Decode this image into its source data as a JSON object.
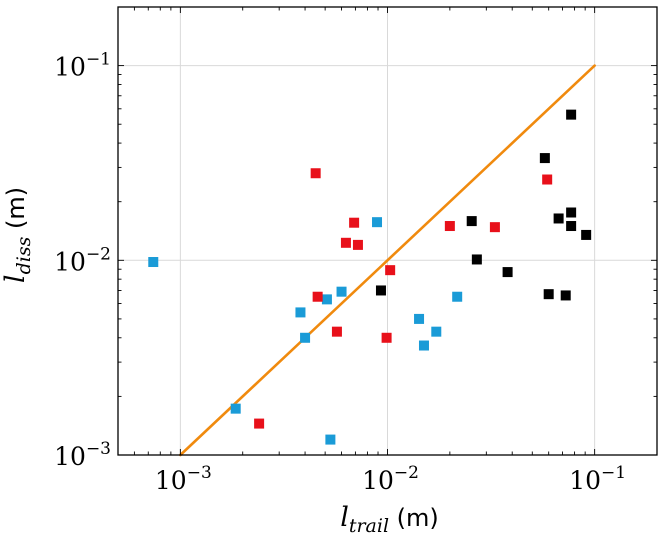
{
  "chart_data": {
    "type": "scatter",
    "title": "",
    "xlabel": {
      "base": "l",
      "sub": "trail",
      "unit": " (m)"
    },
    "ylabel": {
      "base": "l",
      "sub": "diss",
      "unit": " (m)"
    },
    "xscale": "log",
    "yscale": "log",
    "xlim": [
      0.0005,
      0.2
    ],
    "ylim": [
      0.001,
      0.2
    ],
    "grid": true,
    "xticks": [
      {
        "value": 0.001,
        "base": "10",
        "exp": "−3"
      },
      {
        "value": 0.01,
        "base": "10",
        "exp": "−2"
      },
      {
        "value": 0.1,
        "base": "10",
        "exp": "−1"
      }
    ],
    "yticks": [
      {
        "value": 0.001,
        "base": "10",
        "exp": "−3"
      },
      {
        "value": 0.01,
        "base": "10",
        "exp": "−2"
      },
      {
        "value": 0.1,
        "base": "10",
        "exp": "−1"
      }
    ],
    "reference_line": {
      "name": "y = x",
      "color": "#f08a0e",
      "from": [
        0.001,
        0.001
      ],
      "to": [
        0.1,
        0.1
      ]
    },
    "series": [
      {
        "name": "blue",
        "color": "#1a9bd7",
        "marker": "square",
        "points": [
          [
            0.00074,
            0.0098
          ],
          [
            0.00185,
            0.00173
          ],
          [
            0.0038,
            0.0054
          ],
          [
            0.004,
            0.004
          ],
          [
            0.0051,
            0.0063
          ],
          [
            0.0053,
            0.0012
          ],
          [
            0.006,
            0.0069
          ],
          [
            0.0089,
            0.0157
          ],
          [
            0.0142,
            0.005
          ],
          [
            0.015,
            0.00365
          ],
          [
            0.0172,
            0.0043
          ],
          [
            0.0217,
            0.0065
          ]
        ]
      },
      {
        "name": "red",
        "color": "#e8101a",
        "marker": "square",
        "points": [
          [
            0.0024,
            0.00145
          ],
          [
            0.0045,
            0.028
          ],
          [
            0.0046,
            0.0065
          ],
          [
            0.0057,
            0.0043
          ],
          [
            0.0063,
            0.0123
          ],
          [
            0.0069,
            0.0156
          ],
          [
            0.0072,
            0.012
          ],
          [
            0.0099,
            0.004
          ],
          [
            0.0103,
            0.0089
          ],
          [
            0.02,
            0.015
          ],
          [
            0.033,
            0.0148
          ],
          [
            0.059,
            0.026
          ]
        ]
      },
      {
        "name": "black",
        "color": "#000000",
        "marker": "square",
        "points": [
          [
            0.0093,
            0.007
          ],
          [
            0.0255,
            0.0159
          ],
          [
            0.027,
            0.0101
          ],
          [
            0.038,
            0.0087
          ],
          [
            0.0575,
            0.0335
          ],
          [
            0.06,
            0.0067
          ],
          [
            0.067,
            0.0164
          ],
          [
            0.0725,
            0.0066
          ],
          [
            0.077,
            0.056
          ],
          [
            0.077,
            0.0176
          ],
          [
            0.077,
            0.015
          ],
          [
            0.091,
            0.0135
          ]
        ]
      }
    ]
  }
}
